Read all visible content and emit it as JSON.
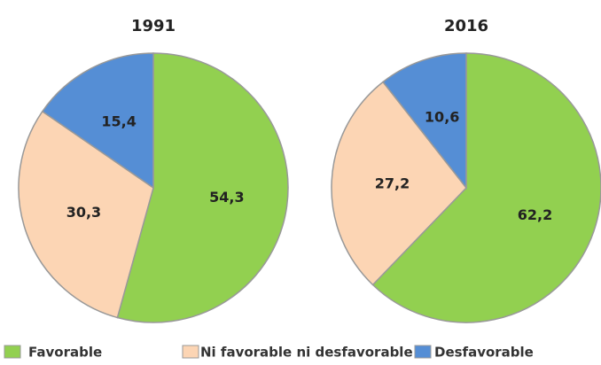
{
  "legend": {
    "categories": [
      "Favorable",
      "Ni favorable ni desfavorable",
      "Desfavorable"
    ],
    "colors": [
      "#92d050",
      "#fcd5b4",
      "#558ed5"
    ]
  },
  "chart_data": [
    {
      "type": "pie",
      "title": "1991",
      "values": [
        54.3,
        30.3,
        15.4
      ],
      "value_labels": [
        "54,3",
        "30,3",
        "15,4"
      ]
    },
    {
      "type": "pie",
      "title": "2016",
      "values": [
        62.2,
        27.2,
        10.6
      ],
      "value_labels": [
        "62,2",
        "27,2",
        "10,6"
      ]
    }
  ]
}
